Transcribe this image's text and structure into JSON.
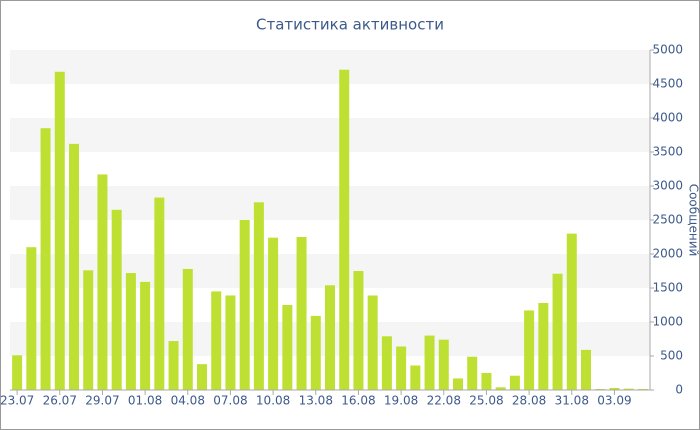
{
  "chart_data": {
    "type": "bar",
    "title": "Статистика активности",
    "y_label": "Сообщений",
    "categories": [
      "23.07",
      null,
      null,
      "26.07",
      null,
      null,
      "29.07",
      null,
      null,
      "01.08",
      null,
      null,
      "04.08",
      null,
      null,
      "07.08",
      null,
      null,
      "10.08",
      null,
      null,
      "13.08",
      null,
      null,
      "16.08",
      null,
      null,
      "19.08",
      null,
      null,
      "22.08",
      null,
      null,
      "25.08",
      null,
      null,
      "28.08",
      null,
      null,
      "31.08",
      null,
      null,
      "03.09",
      null,
      null
    ],
    "values": [
      510,
      2100,
      3850,
      4680,
      3620,
      1760,
      3170,
      2650,
      1720,
      1590,
      2830,
      720,
      1780,
      380,
      1450,
      1390,
      2500,
      2760,
      2240,
      1250,
      2250,
      1090,
      1540,
      4710,
      1750,
      1390,
      790,
      640,
      360,
      800,
      740,
      170,
      490,
      250,
      40,
      210,
      1170,
      1280,
      1710,
      2300,
      590,
      15,
      30,
      20,
      15
    ],
    "color": "#bde032",
    "ylim": [
      0,
      5000
    ],
    "yticks": [
      0,
      500,
      1000,
      1500,
      2000,
      2500,
      3000,
      3500,
      4000,
      4500,
      5000
    ],
    "y_axis_side": "right",
    "grid": "bands"
  }
}
